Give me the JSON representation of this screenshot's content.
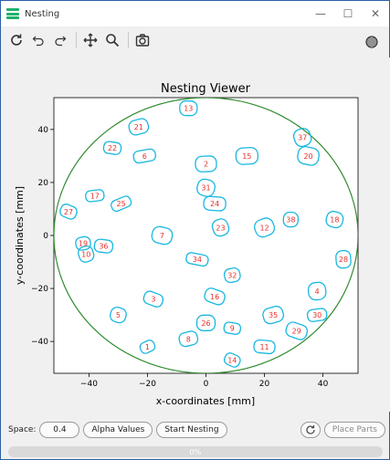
{
  "window": {
    "title": "Nesting",
    "minimize_glyph": "—",
    "maximize_glyph": "☐",
    "close_glyph": "✕"
  },
  "toolbar": {
    "icons": [
      "reset-view-icon",
      "undo-icon",
      "redo-icon",
      "pan-icon",
      "zoom-icon",
      "save-figure-icon",
      "settings-icon"
    ]
  },
  "chart_data": {
    "type": "scatter",
    "title": "Nesting Viewer",
    "xlabel": "x-coordinates [mm]",
    "ylabel": "y-coordinates [mm]",
    "xlim": [
      -52,
      52
    ],
    "ylim": [
      -52,
      52
    ],
    "xticks": [
      -40,
      -20,
      0,
      20,
      40
    ],
    "yticks": [
      -40,
      -20,
      0,
      20,
      40
    ],
    "xtick_labels": [
      "−40",
      "−20",
      "0",
      "20",
      "40"
    ],
    "ytick_labels": [
      "−40",
      "−20",
      "0",
      "20",
      "40"
    ],
    "boundary": {
      "shape": "circle",
      "cx": 0,
      "cy": 0,
      "r": 52,
      "color": "#2e8b2e"
    },
    "part_color": "#1ab8e0",
    "label_color": "#e8302a",
    "grid": false,
    "parts": [
      {
        "id": "1",
        "x": -20,
        "y": -42
      },
      {
        "id": "2",
        "x": 0,
        "y": 27
      },
      {
        "id": "3",
        "x": -18,
        "y": -24
      },
      {
        "id": "4",
        "x": 38,
        "y": -21
      },
      {
        "id": "5",
        "x": -30,
        "y": -30
      },
      {
        "id": "6",
        "x": -21,
        "y": 30
      },
      {
        "id": "7",
        "x": -15,
        "y": 0
      },
      {
        "id": "8",
        "x": -6,
        "y": -39
      },
      {
        "id": "9",
        "x": 9,
        "y": -35
      },
      {
        "id": "10",
        "x": -41,
        "y": -7
      },
      {
        "id": "11",
        "x": 20,
        "y": -42
      },
      {
        "id": "12",
        "x": 20,
        "y": 3
      },
      {
        "id": "13",
        "x": -6,
        "y": 48
      },
      {
        "id": "14",
        "x": 9,
        "y": -47
      },
      {
        "id": "15",
        "x": 14,
        "y": 30
      },
      {
        "id": "16",
        "x": 3,
        "y": -23
      },
      {
        "id": "17",
        "x": -38,
        "y": 15
      },
      {
        "id": "18",
        "x": 44,
        "y": 6
      },
      {
        "id": "19",
        "x": -42,
        "y": -3
      },
      {
        "id": "20",
        "x": 35,
        "y": 30
      },
      {
        "id": "21",
        "x": -23,
        "y": 41
      },
      {
        "id": "22",
        "x": -32,
        "y": 33
      },
      {
        "id": "23",
        "x": 5,
        "y": 3
      },
      {
        "id": "24",
        "x": 3,
        "y": 12
      },
      {
        "id": "25",
        "x": -29,
        "y": 12
      },
      {
        "id": "26",
        "x": 0,
        "y": -33
      },
      {
        "id": "27",
        "x": -47,
        "y": 9
      },
      {
        "id": "28",
        "x": 47,
        "y": -9
      },
      {
        "id": "29",
        "x": 31,
        "y": -36
      },
      {
        "id": "30",
        "x": 38,
        "y": -30
      },
      {
        "id": "31",
        "x": 0,
        "y": 18
      },
      {
        "id": "32",
        "x": 9,
        "y": -15
      },
      {
        "id": "34",
        "x": -3,
        "y": -9
      },
      {
        "id": "35",
        "x": 23,
        "y": -30
      },
      {
        "id": "36",
        "x": -35,
        "y": -4
      },
      {
        "id": "37",
        "x": 33,
        "y": 37
      },
      {
        "id": "38",
        "x": 29,
        "y": 6
      }
    ]
  },
  "controls": {
    "space_label": "Space:",
    "space_value": "0.4",
    "alpha_button": "Alpha Values",
    "start_button": "Start Nesting",
    "refresh_icon": "refresh-icon",
    "place_button": "Place Parts",
    "progress_value": 0,
    "progress_text": "0%"
  }
}
